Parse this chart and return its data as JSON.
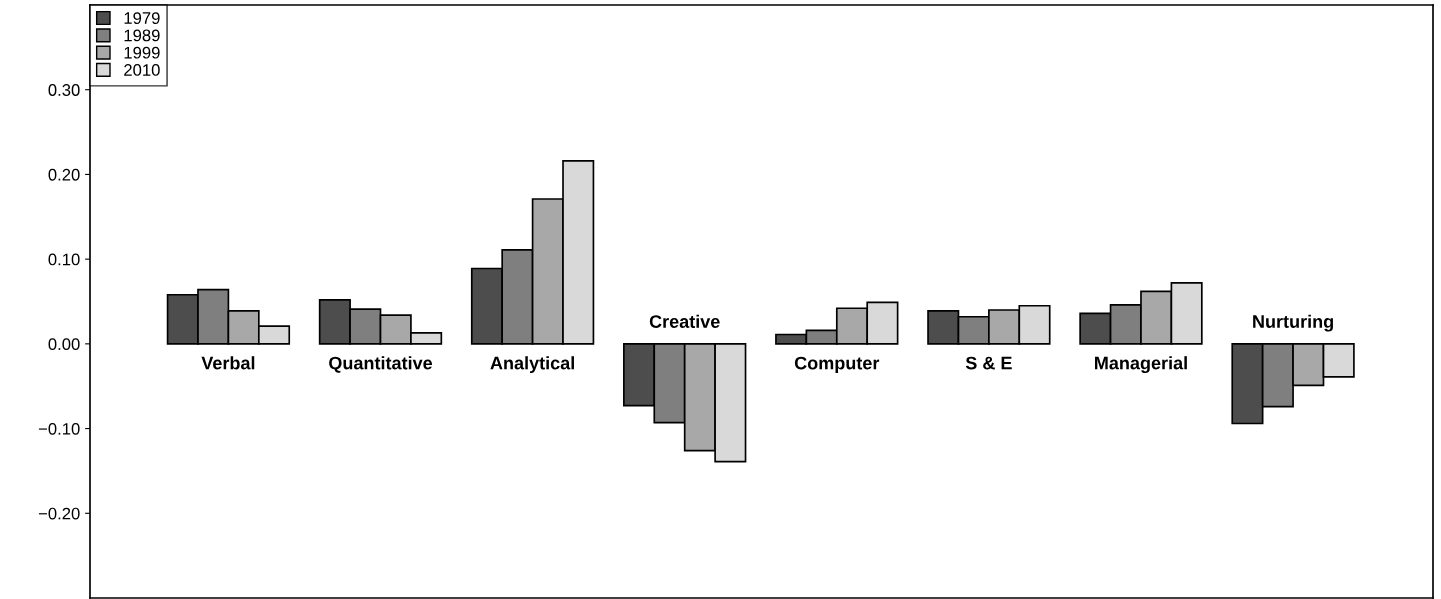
{
  "chart_data": {
    "type": "bar",
    "categories": [
      "Verbal",
      "Quantitative",
      "Analytical",
      "Creative",
      "Computer",
      "S & E",
      "Managerial",
      "Nurturing"
    ],
    "series": [
      {
        "name": "1979",
        "color": "#4d4d4d",
        "values": [
          0.058,
          0.052,
          0.089,
          -0.073,
          0.011,
          0.039,
          0.036,
          -0.094
        ]
      },
      {
        "name": "1989",
        "color": "#7f7f7f",
        "values": [
          0.064,
          0.041,
          0.111,
          -0.093,
          0.016,
          0.032,
          0.046,
          -0.074
        ]
      },
      {
        "name": "1999",
        "color": "#a8a8a8",
        "values": [
          0.039,
          0.034,
          0.171,
          -0.126,
          0.042,
          0.04,
          0.062,
          -0.049
        ]
      },
      {
        "name": "2010",
        "color": "#d9d9d9",
        "values": [
          0.021,
          0.013,
          0.216,
          -0.139,
          0.049,
          0.045,
          0.072,
          -0.039
        ]
      }
    ],
    "ylim": [
      -0.3,
      0.4
    ],
    "yticks": [
      {
        "value": -0.2,
        "label": "−0.20"
      },
      {
        "value": -0.1,
        "label": "−0.10"
      },
      {
        "value": 0,
        "label": "0.00"
      },
      {
        "value": 0.1,
        "label": "0.10"
      },
      {
        "value": 0.2,
        "label": "0.20"
      },
      {
        "value": 0.3,
        "label": "0.30"
      }
    ],
    "legend": "top left",
    "grid": false
  }
}
